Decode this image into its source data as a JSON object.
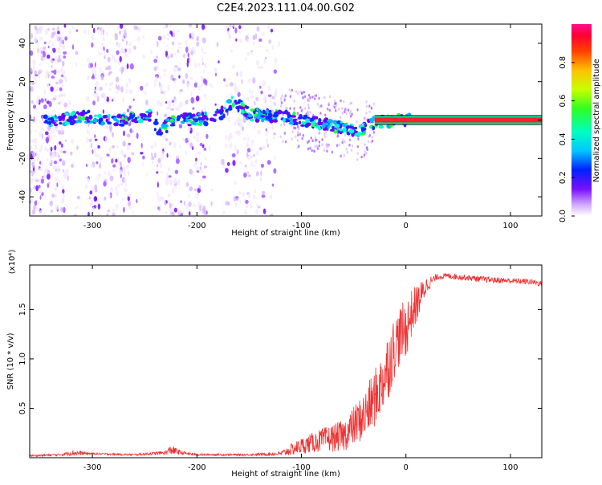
{
  "chart_data": [
    {
      "type": "heatmap",
      "title": "C2E4.2023.111.04.00.G02",
      "xlabel": "Height of straight line (km)",
      "ylabel": "Frequency (Hz)",
      "xlim": [
        -360,
        130
      ],
      "ylim": [
        -50,
        50
      ],
      "x_ticks": [
        -300,
        -200,
        -100,
        0,
        100
      ],
      "y_ticks": [
        -40,
        -20,
        0,
        20,
        40
      ],
      "colorbar": {
        "label": "Normalized spectral amplitude",
        "range": [
          0.0,
          1.0
        ],
        "ticks": [
          "0.0",
          "0.2",
          "0.4",
          "0.6",
          "0.8"
        ],
        "colors": [
          "#f4e8ff",
          "#d8b8ff",
          "#9b50ff",
          "#6a00ff",
          "#0030ff",
          "#00b8ff",
          "#00ffd0",
          "#30ff30",
          "#c0ff00",
          "#ffd000",
          "#ff6000",
          "#ff0020",
          "#ff1090"
        ]
      },
      "ridge": {
        "points": [
          [
            -340,
            0
          ],
          [
            -320,
            1
          ],
          [
            -300,
            2
          ],
          [
            -280,
            -1
          ],
          [
            -260,
            1
          ],
          [
            -245,
            2
          ],
          [
            -235,
            -6
          ],
          [
            -220,
            1
          ],
          [
            -200,
            0
          ],
          [
            -180,
            2
          ],
          [
            -165,
            10
          ],
          [
            -150,
            3
          ],
          [
            -120,
            2
          ],
          [
            -100,
            0
          ],
          [
            -80,
            -2
          ],
          [
            -60,
            -4
          ],
          [
            -45,
            -6
          ],
          [
            -30,
            -1
          ],
          [
            -10,
            0
          ],
          [
            10,
            0
          ],
          [
            130,
            0
          ]
        ],
        "steady_from": 5
      }
    },
    {
      "type": "line",
      "xlabel": "Height of straight line (km)",
      "ylabel": "SNR (10 * v/v)",
      "multiplier": "(x10⁴)",
      "xlim": [
        -360,
        130
      ],
      "ylim": [
        0,
        1.95
      ],
      "x_ticks": [
        -300,
        -200,
        -100,
        0,
        100
      ],
      "y_ticks": [
        0.5,
        1.0,
        1.5
      ],
      "y_tick_labels": [
        "0.5",
        "1.0",
        "1.5"
      ],
      "color": "#ee3333",
      "series": [
        {
          "name": "SNR",
          "x": [
            -360,
            -330,
            -320,
            -300,
            -260,
            -230,
            -225,
            -215,
            -200,
            -150,
            -120,
            -110,
            -100,
            -90,
            -80,
            -70,
            -60,
            -50,
            -40,
            -30,
            -25,
            -20,
            -15,
            -10,
            -5,
            0,
            5,
            10,
            20,
            30,
            40,
            60,
            80,
            100,
            120,
            130
          ],
          "values": [
            0.02,
            0.03,
            0.05,
            0.04,
            0.03,
            0.05,
            0.08,
            0.05,
            0.03,
            0.03,
            0.04,
            0.08,
            0.12,
            0.15,
            0.18,
            0.2,
            0.22,
            0.32,
            0.42,
            0.6,
            0.7,
            0.85,
            1.0,
            1.15,
            1.25,
            1.3,
            1.45,
            1.55,
            1.75,
            1.83,
            1.84,
            1.82,
            1.8,
            1.79,
            1.78,
            1.76
          ],
          "noise_amplitude": [
            0.01,
            0.01,
            0.03,
            0.01,
            0.01,
            0.02,
            0.05,
            0.02,
            0.01,
            0.01,
            0.02,
            0.06,
            0.08,
            0.1,
            0.12,
            0.14,
            0.16,
            0.2,
            0.25,
            0.3,
            0.3,
            0.35,
            0.35,
            0.3,
            0.3,
            0.3,
            0.25,
            0.2,
            0.08,
            0.03,
            0.03,
            0.03,
            0.03,
            0.03,
            0.03,
            0.03
          ]
        }
      ]
    }
  ]
}
